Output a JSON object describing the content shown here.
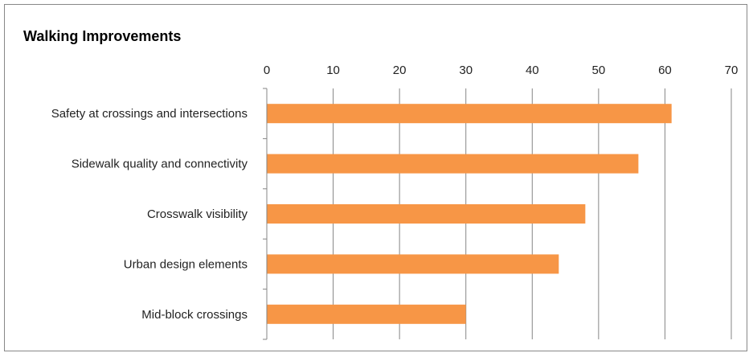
{
  "chart_data": {
    "type": "bar",
    "orientation": "horizontal",
    "title": "Walking Improvements",
    "xlabel": "",
    "ylabel": "",
    "categories": [
      "Safety at crossings and intersections",
      "Sidewalk quality and connectivity",
      "Crosswalk visibility",
      "Urban design elements",
      "Mid-block crossings"
    ],
    "values": [
      61,
      56,
      48,
      44,
      30
    ],
    "xlim": [
      0,
      70
    ],
    "xticks": [
      0,
      10,
      20,
      30,
      40,
      50,
      60,
      70
    ],
    "x_axis_position": "top",
    "grid": "vertical",
    "legend": "none",
    "colors": {
      "bar": "#f79646",
      "grid": "#868686",
      "axis": "#868686",
      "frame": "#888888"
    }
  }
}
